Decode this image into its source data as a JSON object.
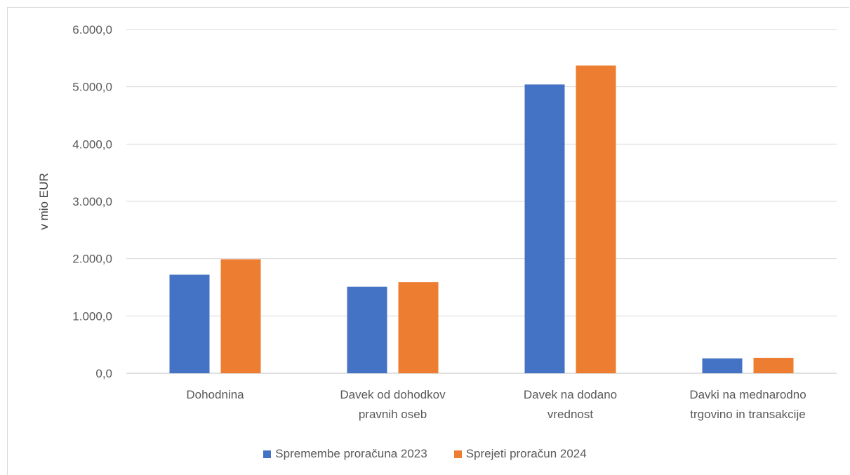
{
  "chart_data": {
    "type": "bar",
    "ylabel": "v mio EUR",
    "ylim": [
      0,
      6000
    ],
    "yticks": [
      "0,0",
      "1.000,0",
      "2.000,0",
      "3.000,0",
      "4.000,0",
      "5.000,0",
      "6.000,0"
    ],
    "grid": true,
    "legend_position": "bottom",
    "categories": [
      [
        "Dohodnina"
      ],
      [
        "Davek od dohodkov",
        "pravnih oseb"
      ],
      [
        "Davek na dodano",
        "vrednost"
      ],
      [
        "Davki na mednarodno",
        "trgovino in transakcije"
      ]
    ],
    "series": [
      {
        "name": "Spremembe proračuna 2023",
        "color": "#4472c4",
        "values": [
          1720,
          1510,
          5040,
          260
        ]
      },
      {
        "name": "Sprejeti proračun 2024",
        "color": "#ed7d31",
        "values": [
          1990,
          1590,
          5370,
          270
        ]
      }
    ]
  }
}
